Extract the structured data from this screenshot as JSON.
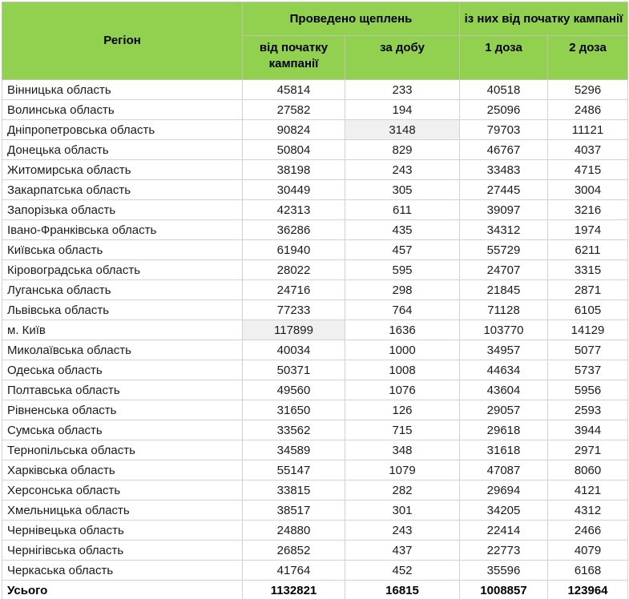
{
  "chart_data": {
    "type": "table",
    "header": {
      "region_label": "Регіон",
      "groups": [
        {
          "label": "Проведено щеплень",
          "columns": [
            "від початку кампанії",
            "за добу"
          ]
        },
        {
          "label": "із них від початку кампанії",
          "columns": [
            "1 доза",
            "2 доза"
          ]
        }
      ]
    },
    "rows": [
      {
        "region": "Вінницька область",
        "values": [
          45814,
          233,
          40518,
          5296
        ]
      },
      {
        "region": "Волинська область",
        "values": [
          27582,
          194,
          25096,
          2486
        ]
      },
      {
        "region": "Дніпропетровська область",
        "values": [
          90824,
          3148,
          79703,
          11121
        ]
      },
      {
        "region": "Донецька область",
        "values": [
          50804,
          829,
          46767,
          4037
        ]
      },
      {
        "region": "Житомирська область",
        "values": [
          38198,
          243,
          33483,
          4715
        ]
      },
      {
        "region": "Закарпатська область",
        "values": [
          30449,
          305,
          27445,
          3004
        ]
      },
      {
        "region": "Запорізька область",
        "values": [
          42313,
          611,
          39097,
          3216
        ]
      },
      {
        "region": "Івано-Франківська область",
        "values": [
          36286,
          435,
          34312,
          1974
        ]
      },
      {
        "region": "Київська область",
        "values": [
          61940,
          457,
          55729,
          6211
        ]
      },
      {
        "region": "Кіровоградська область",
        "values": [
          28022,
          595,
          24707,
          3315
        ]
      },
      {
        "region": "Луганська область",
        "values": [
          24716,
          298,
          21845,
          2871
        ]
      },
      {
        "region": "Львівська область",
        "values": [
          77233,
          764,
          71128,
          6105
        ]
      },
      {
        "region": "м. Київ",
        "values": [
          117899,
          1636,
          103770,
          14129
        ]
      },
      {
        "region": "Миколаївська область",
        "values": [
          40034,
          1000,
          34957,
          5077
        ]
      },
      {
        "region": "Одеська область",
        "values": [
          50371,
          1008,
          44634,
          5737
        ]
      },
      {
        "region": "Полтавська область",
        "values": [
          49560,
          1076,
          43604,
          5956
        ]
      },
      {
        "region": "Рівненська область",
        "values": [
          31650,
          126,
          29057,
          2593
        ]
      },
      {
        "region": "Сумська область",
        "values": [
          33562,
          715,
          29618,
          3944
        ]
      },
      {
        "region": "Тернопільська область",
        "values": [
          34589,
          348,
          31618,
          2971
        ]
      },
      {
        "region": "Харківська область",
        "values": [
          55147,
          1079,
          47087,
          8060
        ]
      },
      {
        "region": "Херсонська область",
        "values": [
          33815,
          282,
          29694,
          4121
        ]
      },
      {
        "region": "Хмельницька область",
        "values": [
          38517,
          301,
          34205,
          4312
        ]
      },
      {
        "region": "Чернівецька область",
        "values": [
          24880,
          243,
          22414,
          2466
        ]
      },
      {
        "region": "Чернігівська область",
        "values": [
          26852,
          437,
          22773,
          4079
        ]
      },
      {
        "region": "Черкаська область",
        "values": [
          41764,
          452,
          35596,
          6168
        ]
      }
    ],
    "total": {
      "label": "Усього",
      "values": [
        1132821,
        16815,
        1008857,
        123964
      ]
    },
    "highlighted_cells": [
      {
        "row_index": 2,
        "value_index": 1
      },
      {
        "row_index": 12,
        "value_index": 0
      }
    ]
  },
  "colors": {
    "header_bg": "#92d050",
    "header_text": "#000000",
    "cell_border": "#d2d2d2",
    "highlight_bg": "#f0f0f0"
  }
}
